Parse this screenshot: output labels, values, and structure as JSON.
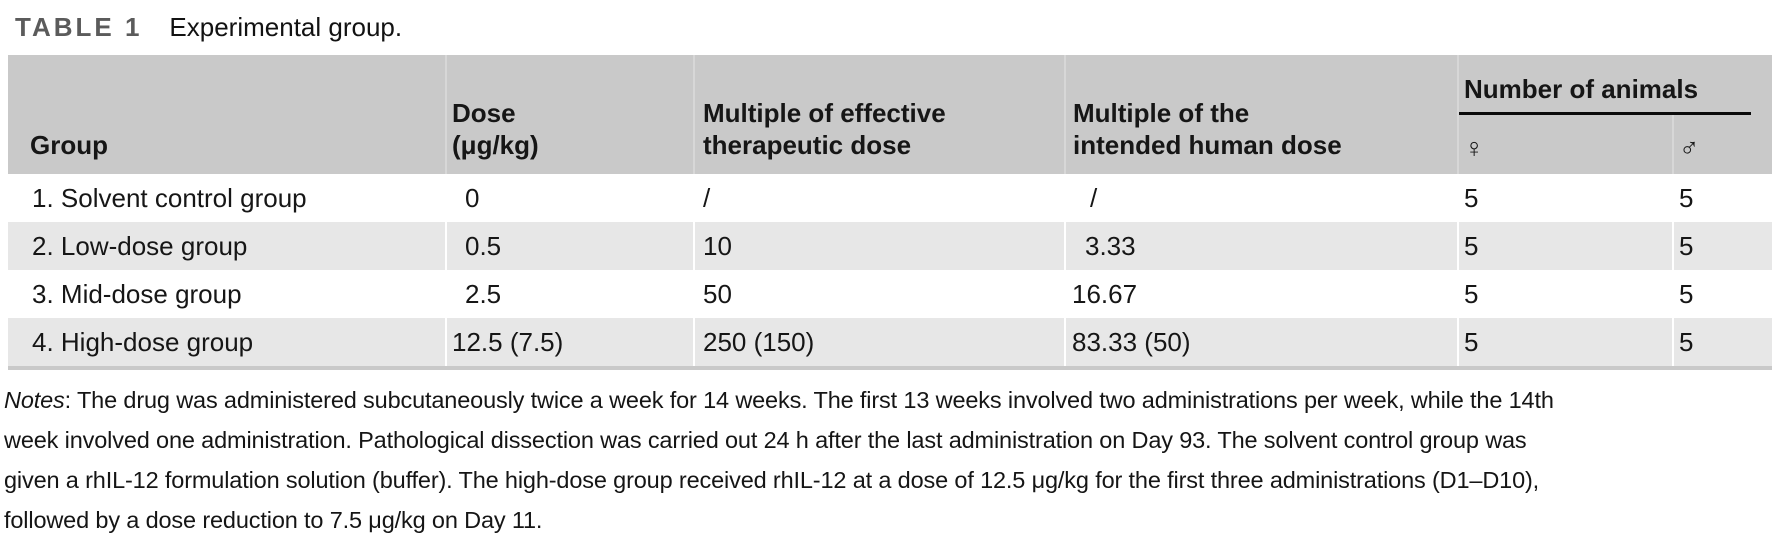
{
  "title": {
    "label": "TABLE 1",
    "caption": "Experimental group."
  },
  "table": {
    "headers": {
      "group": "Group",
      "dose_line1": "Dose",
      "dose_line2": "(μg/kg)",
      "mult_eff_line1": "Multiple of effective",
      "mult_eff_line2": "therapeutic dose",
      "mult_human_line1": "Multiple of the",
      "mult_human_line2": "intended human dose",
      "animals": "Number of animals",
      "female_symbol": "♀",
      "male_symbol": "♂"
    },
    "rows": [
      {
        "group": "1. Solvent control group",
        "dose": "0",
        "multiple_effective": "/",
        "multiple_human": "/",
        "female": "5",
        "male": "5"
      },
      {
        "group": "2. Low-dose group",
        "dose": "0.5",
        "multiple_effective": "10",
        "multiple_human": "3.33",
        "female": "5",
        "male": "5"
      },
      {
        "group": "3. Mid-dose group",
        "dose": "2.5",
        "multiple_effective": "50",
        "multiple_human": "16.67",
        "female": "5",
        "male": "5"
      },
      {
        "group": "4. High-dose group",
        "dose": "12.5 (7.5)",
        "multiple_effective": "250 (150)",
        "multiple_human": "83.33 (50)",
        "female": "5",
        "male": "5"
      }
    ]
  },
  "notes": {
    "label": "Notes",
    "lines": [
      ": The drug was administered subcutaneously twice a week for 14 weeks. The first 13 weeks involved two administrations per week, while the 14th",
      "week involved one administration. Pathological dissection was carried out 24 h after the last administration on Day 93. The solvent control group was",
      "given a rhIL-12 formulation solution (buffer). The high-dose group received rhIL-12 at a dose of 12.5 μg/kg for the first three administrations (D1–D10),",
      "followed by a dose reduction to 7.5 μg/kg on Day 11."
    ]
  },
  "colors": {
    "header_bg": "#c9c9c9",
    "row_alt_bg": "#e7e7e7",
    "title_label": "#5b5b5b",
    "animals_rule": "#0a0a0a",
    "bottom_rule": "#c9c9c9"
  }
}
